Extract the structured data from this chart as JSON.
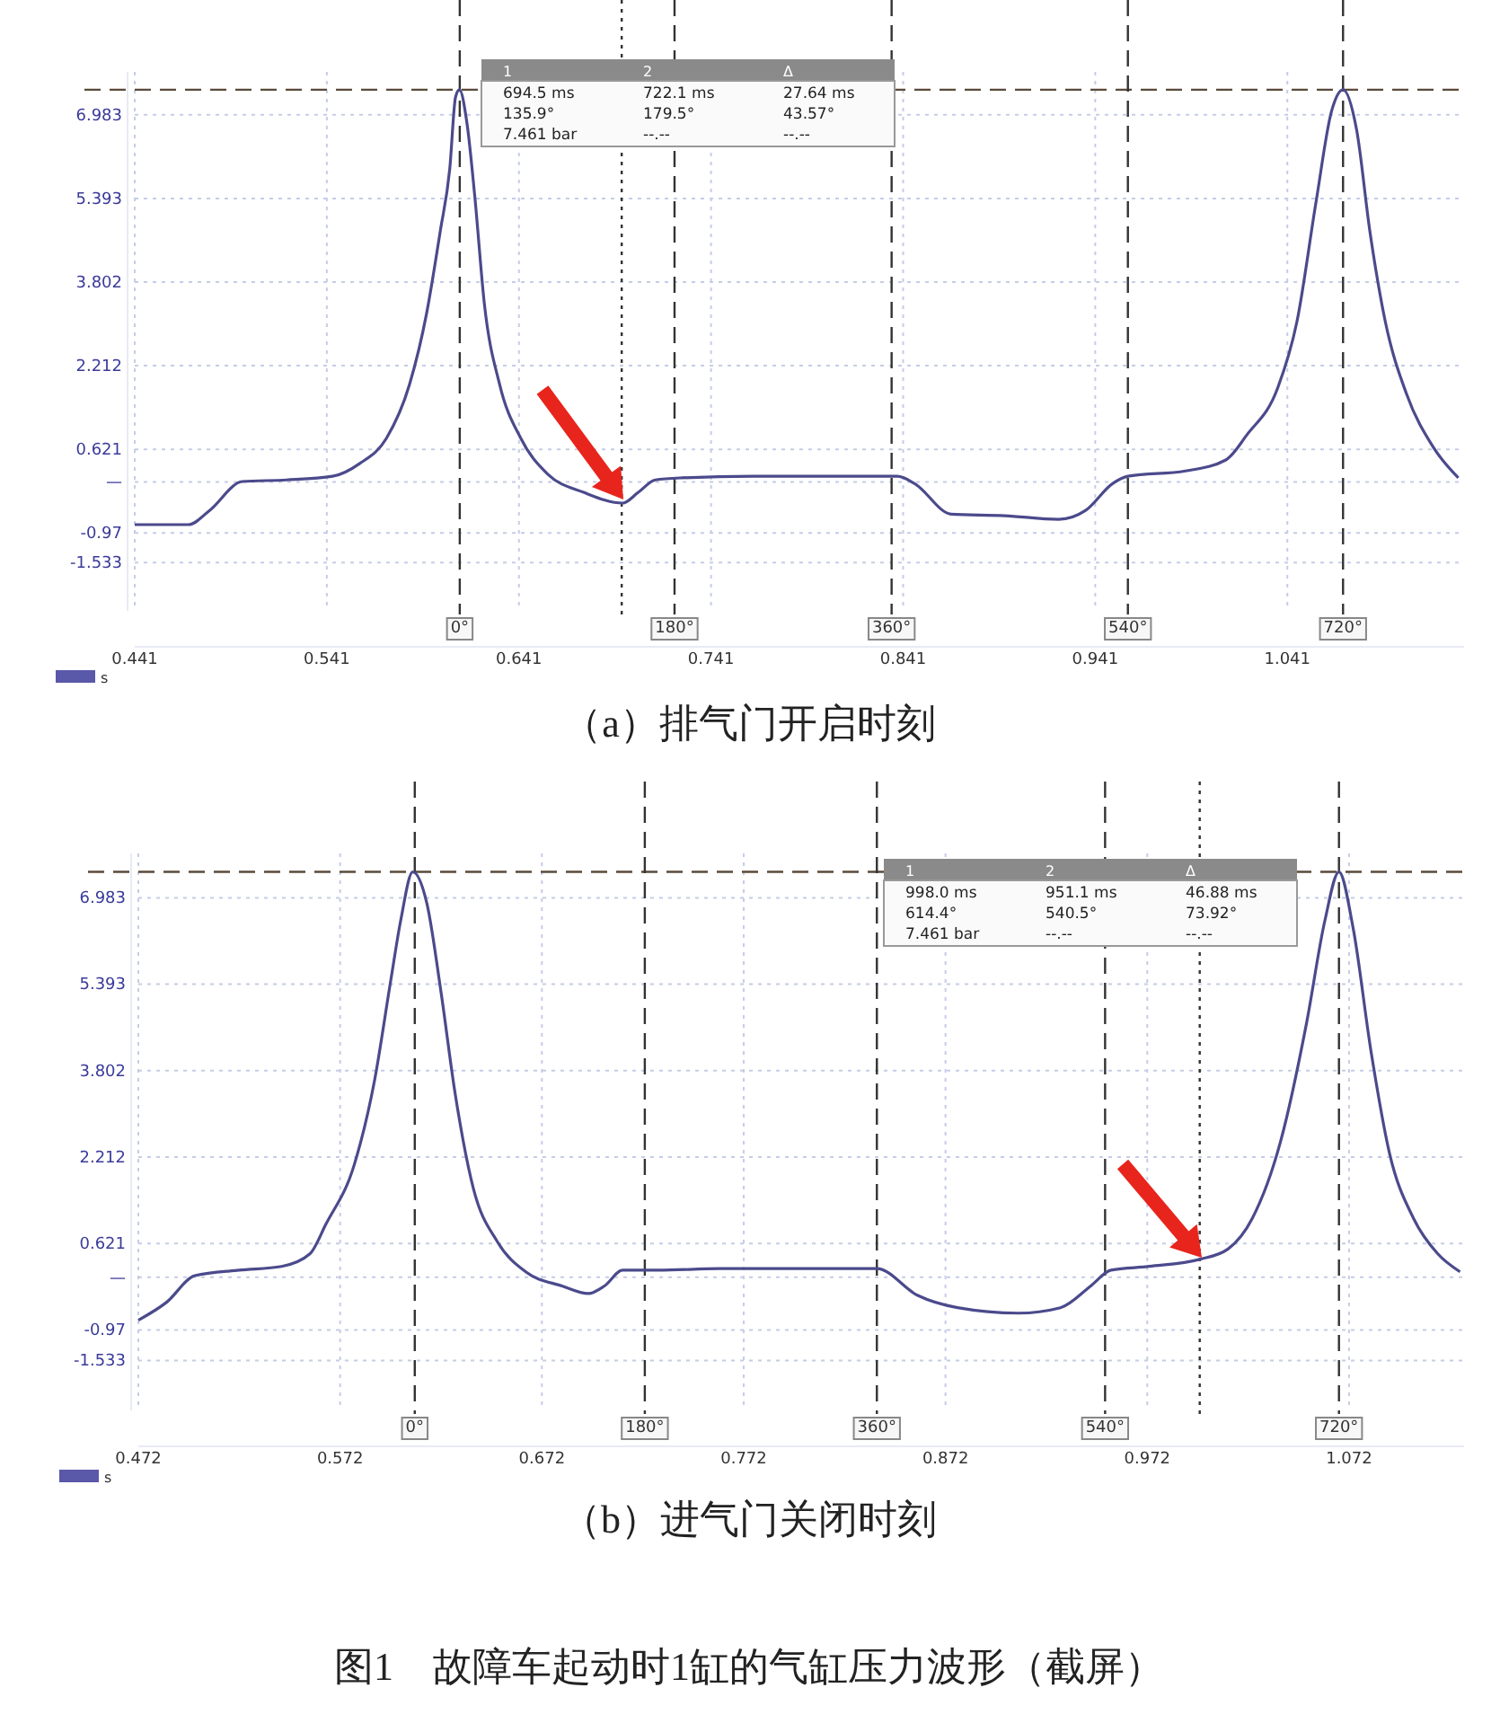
{
  "chart_data": [
    {
      "type": "line",
      "title": "（a）排气门开启时刻",
      "xlabel": "s",
      "annotations": [
        "1",
        "2",
        "Δ",
        "694.5 ms",
        "722.1 ms",
        "27.64 ms",
        "135.9°",
        "179.5°",
        "43.57°",
        "7.461 bar",
        "--.--",
        "--.--",
        {
          "text": "0°",
          "x": 0.6102,
          "y": -2.45
        },
        {
          "text": "180°",
          "x": 0.722,
          "y": -2.45
        },
        {
          "text": "360°",
          "x": 0.835,
          "y": -2.45
        },
        {
          "text": "540°",
          "x": 0.958,
          "y": -2.45
        },
        {
          "text": "720°",
          "x": 1.07,
          "y": -2.45
        }
      ],
      "series": [
        {
          "color": "#4b4a8c",
          "x": [
            0.441,
            0.469,
            0.48,
            0.497,
            0.52,
            0.544,
            0.558,
            0.572,
            0.584,
            0.593,
            0.6,
            0.605,
            0.608,
            0.61,
            0.614,
            0.618,
            0.623,
            0.631,
            0.642,
            0.656,
            0.675,
            0.695,
            0.703,
            0.712,
            0.726,
            0.763,
            0.838,
            0.847,
            0.866,
            0.894,
            0.922,
            0.936,
            0.95,
            0.958,
            0.988,
            1.009,
            1.02,
            1.036,
            1.046,
            1.056,
            1.064,
            1.07,
            1.077,
            1.084,
            1.092,
            1.103,
            1.117,
            1.13
          ],
          "values": [
            -0.81,
            -0.81,
            -0.54,
            0.01,
            0.04,
            0.11,
            0.35,
            0.83,
            1.85,
            3.22,
            4.76,
            5.96,
            7.32,
            7.46,
            6.81,
            5.44,
            3.39,
            1.85,
            0.83,
            0.15,
            -0.2,
            -0.4,
            -0.2,
            0.04,
            0.08,
            0.11,
            0.11,
            -0.03,
            -0.61,
            -0.64,
            -0.71,
            -0.54,
            -0.03,
            0.11,
            0.21,
            0.42,
            0.9,
            1.79,
            3.05,
            5.34,
            7.05,
            7.46,
            6.71,
            4.76,
            3.05,
            1.68,
            0.66,
            0.08
          ]
        }
      ],
      "xlim": [
        0.441,
        1.133
      ],
      "ylim": [
        -2.45,
        7.8
      ],
      "xticks": [
        0.441,
        0.541,
        0.641,
        0.741,
        0.841,
        0.941,
        1.041
      ],
      "yticks": [
        6.983,
        5.393,
        3.802,
        2.212,
        0.621,
        {
          "value": 0,
          "label": "—"
        },
        -0.97,
        -1.533
      ],
      "grid": true,
      "ref_lines": [
        {
          "axis": "y",
          "value": 7.461,
          "line_style": "dashed",
          "color": "#5a4a3a"
        },
        {
          "axis": "x",
          "value": 0.6102,
          "line_style": "dashed",
          "color": "#333333"
        },
        {
          "axis": "x",
          "value": 0.722,
          "line_style": "dashed",
          "color": "#333333"
        },
        {
          "axis": "x",
          "value": 0.835,
          "line_style": "dashed",
          "color": "#333333"
        },
        {
          "axis": "x",
          "value": 0.958,
          "line_style": "dashed",
          "color": "#333333"
        },
        {
          "axis": "x",
          "value": 1.07,
          "line_style": "dashed",
          "color": "#333333"
        },
        {
          "axis": "x",
          "value": 0.6945,
          "line_style": "dotted",
          "color": "#333333"
        }
      ]
    },
    {
      "type": "line",
      "title": "（b）进气门关闭时刻",
      "xlabel": "s",
      "annotations": [
        "1",
        "2",
        "Δ",
        "998.0 ms",
        "951.1 ms",
        "46.88 ms",
        "614.4°",
        "540.5°",
        "73.92°",
        "7.461 bar",
        "--.--",
        "--.--",
        {
          "text": "0°",
          "x": 0.609,
          "y": -2.45
        },
        {
          "text": "180°",
          "x": 0.723,
          "y": -2.45
        },
        {
          "text": "360°",
          "x": 0.838,
          "y": -2.45
        },
        {
          "text": "540°",
          "x": 0.9511,
          "y": -2.45
        },
        {
          "text": "720°",
          "x": 1.067,
          "y": -2.45
        },
        "图1　故障车起动时1缸的气缸压力波形（截屏）"
      ],
      "series": [
        {
          "color": "#4b4a8c",
          "x": [
            0.472,
            0.486,
            0.5,
            0.522,
            0.543,
            0.557,
            0.565,
            0.579,
            0.589,
            0.597,
            0.602,
            0.608,
            0.615,
            0.622,
            0.629,
            0.638,
            0.65,
            0.664,
            0.682,
            0.695,
            0.703,
            0.712,
            0.73,
            0.76,
            0.838,
            0.858,
            0.878,
            0.908,
            0.929,
            0.944,
            0.954,
            0.973,
            0.998,
            1.012,
            1.024,
            1.038,
            1.051,
            1.06,
            1.067,
            1.074,
            1.083,
            1.092,
            1.104,
            1.116,
            1.127
          ],
          "values": [
            -0.79,
            -0.46,
            0.03,
            0.13,
            0.2,
            0.43,
            0.98,
            2.07,
            3.61,
            5.44,
            6.56,
            7.46,
            6.88,
            5.25,
            3.38,
            1.64,
            0.65,
            0.1,
            -0.16,
            -0.3,
            -0.16,
            0.13,
            0.13,
            0.16,
            0.16,
            -0.33,
            -0.56,
            -0.66,
            -0.56,
            -0.16,
            0.13,
            0.2,
            0.33,
            0.52,
            1.08,
            2.49,
            4.69,
            6.56,
            7.46,
            6.43,
            4.13,
            2.29,
            1.08,
            0.43,
            0.1
          ]
        }
      ],
      "xlim": [
        0.472,
        1.129
      ],
      "ylim": [
        -2.45,
        7.8
      ],
      "xticks": [
        0.472,
        0.572,
        0.672,
        0.772,
        0.872,
        0.972,
        1.072
      ],
      "yticks": [
        6.983,
        5.393,
        3.802,
        2.212,
        0.621,
        {
          "value": 0,
          "label": "—"
        },
        -0.97,
        -1.533
      ],
      "grid": true,
      "ref_lines": [
        {
          "axis": "y",
          "value": 7.461,
          "line_style": "dashed",
          "color": "#5a4a3a"
        },
        {
          "axis": "x",
          "value": 0.609,
          "line_style": "dashed",
          "color": "#333333"
        },
        {
          "axis": "x",
          "value": 0.723,
          "line_style": "dashed",
          "color": "#333333"
        },
        {
          "axis": "x",
          "value": 0.838,
          "line_style": "dashed",
          "color": "#333333"
        },
        {
          "axis": "x",
          "value": 0.9511,
          "line_style": "dashed",
          "color": "#333333"
        },
        {
          "axis": "x",
          "value": 1.067,
          "line_style": "dashed",
          "color": "#333333"
        },
        {
          "axis": "x",
          "value": 0.998,
          "line_style": "dotted",
          "color": "#333333"
        }
      ]
    }
  ]
}
